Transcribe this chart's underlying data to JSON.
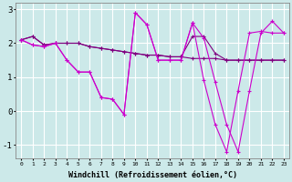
{
  "background_color": "#cce9e9",
  "grid_color": "#b8dada",
  "line_color_dark": "#800080",
  "line_color_bright": "#cc00cc",
  "xlim": [
    -0.5,
    23.5
  ],
  "ylim": [
    -1.4,
    3.2
  ],
  "xlabel": "Windchill (Refroidissement éolien,°C)",
  "yticks": [
    -1,
    0,
    1,
    2,
    3
  ],
  "xtick_labels": [
    "0",
    "1",
    "2",
    "3",
    "4",
    "5",
    "6",
    "7",
    "8",
    "9",
    "10",
    "11",
    "12",
    "13",
    "14",
    "15",
    "16",
    "17",
    "18",
    "19",
    "20",
    "21",
    "22",
    "23"
  ],
  "curves": [
    {
      "x": [
        0,
        1,
        2,
        3,
        4,
        5,
        6,
        7,
        8,
        9,
        10,
        11,
        12,
        13,
        14,
        15,
        16,
        17,
        18,
        19,
        20,
        21,
        22,
        23
      ],
      "y": [
        2.1,
        2.2,
        1.95,
        2.0,
        2.0,
        2.0,
        1.9,
        1.85,
        1.8,
        1.75,
        1.7,
        1.65,
        1.65,
        1.6,
        1.6,
        1.55,
        1.55,
        1.55,
        1.5,
        1.5,
        1.5,
        1.5,
        1.5,
        1.5
      ]
    },
    {
      "x": [
        0,
        1,
        2,
        3,
        4,
        5,
        6,
        7,
        8,
        9,
        10,
        11,
        12,
        13,
        14,
        15,
        16,
        17,
        18,
        19,
        20,
        21,
        22,
        23
      ],
      "y": [
        2.1,
        2.2,
        1.95,
        2.0,
        2.0,
        2.0,
        1.9,
        1.85,
        1.8,
        1.75,
        1.7,
        1.65,
        1.65,
        1.6,
        1.6,
        2.2,
        2.2,
        1.7,
        1.5,
        1.5,
        1.5,
        1.5,
        1.5,
        1.5
      ]
    },
    {
      "x": [
        0,
        1,
        2,
        3,
        4,
        5,
        6,
        7,
        8,
        9,
        10,
        11,
        12,
        13,
        14,
        15,
        16,
        17,
        18,
        19,
        20,
        21,
        22,
        23
      ],
      "y": [
        2.1,
        1.95,
        1.9,
        2.0,
        1.5,
        1.15,
        1.15,
        0.4,
        0.35,
        -0.1,
        2.9,
        2.55,
        1.5,
        1.5,
        1.5,
        2.6,
        2.15,
        0.85,
        -0.4,
        -1.2,
        0.6,
        2.3,
        2.65,
        2.3
      ]
    },
    {
      "x": [
        0,
        1,
        2,
        3,
        4,
        5,
        6,
        7,
        8,
        9,
        10,
        11,
        12,
        13,
        14,
        15,
        16,
        17,
        18,
        19,
        20,
        21,
        22,
        23
      ],
      "y": [
        2.1,
        1.95,
        1.9,
        2.0,
        1.5,
        1.15,
        1.15,
        0.4,
        0.35,
        -0.1,
        2.9,
        2.55,
        1.5,
        1.5,
        1.5,
        2.6,
        0.9,
        -0.4,
        -1.2,
        0.6,
        2.3,
        2.35,
        2.3,
        2.3
      ]
    }
  ]
}
